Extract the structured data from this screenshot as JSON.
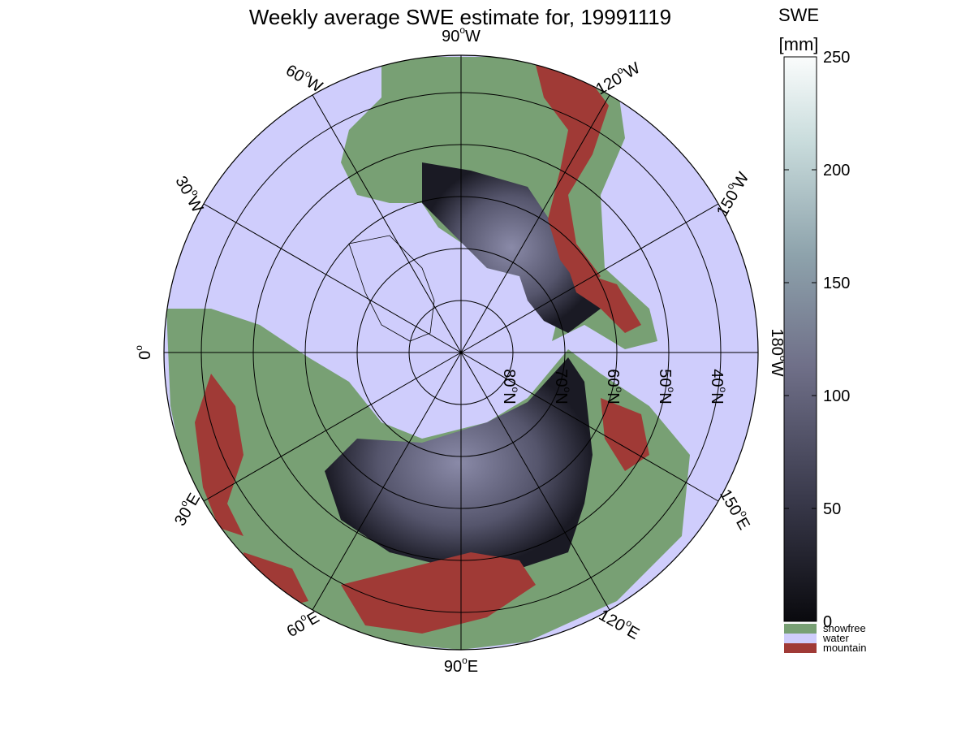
{
  "title": "Weekly average SWE estimate for, 19991119",
  "colorbar": {
    "title_line1": "SWE",
    "title_line2": "[mm]",
    "ticks": [
      "0",
      "50",
      "100",
      "150",
      "200",
      "250"
    ],
    "tick_values": [
      0,
      50,
      100,
      150,
      200,
      250
    ],
    "range": [
      0,
      250
    ]
  },
  "legend": [
    {
      "label": "snowfree",
      "color": "#78a074"
    },
    {
      "label": "water",
      "color": "#cfcdfc"
    },
    {
      "label": "mountain",
      "color": "#a03a36"
    }
  ],
  "map": {
    "projection": "north polar stereographic",
    "ocean_color": "#cfcdfc",
    "land_snowfree_color": "#78a074",
    "mountain_color": "#a03a36",
    "snow_color_low": "#0b0b10",
    "snow_color_high": "#7a7a98",
    "longitude_labels": [
      {
        "lon": "90W",
        "text": "90",
        "suffix": "W"
      },
      {
        "lon": "60W",
        "text": "60",
        "suffix": "W"
      },
      {
        "lon": "30W",
        "text": "30",
        "suffix": "W"
      },
      {
        "lon": "0",
        "text": "0",
        "suffix": ""
      },
      {
        "lon": "30E",
        "text": "30",
        "suffix": "E"
      },
      {
        "lon": "60E",
        "text": "60",
        "suffix": "E"
      },
      {
        "lon": "90E",
        "text": "90",
        "suffix": "E"
      },
      {
        "lon": "120E",
        "text": "120",
        "suffix": "E"
      },
      {
        "lon": "150E",
        "text": "150",
        "suffix": "E"
      },
      {
        "lon": "180W",
        "text": "180",
        "suffix": "W"
      },
      {
        "lon": "150W",
        "text": "150",
        "suffix": "W"
      },
      {
        "lon": "120W",
        "text": "120",
        "suffix": "W"
      }
    ],
    "latitude_labels": [
      {
        "lat": 80,
        "text": "80",
        "suffix": "N"
      },
      {
        "lat": 70,
        "text": "70",
        "suffix": "N"
      },
      {
        "lat": 60,
        "text": "60",
        "suffix": "N"
      },
      {
        "lat": 50,
        "text": "50",
        "suffix": "N"
      },
      {
        "lat": 40,
        "text": "40",
        "suffix": "N"
      }
    ]
  }
}
